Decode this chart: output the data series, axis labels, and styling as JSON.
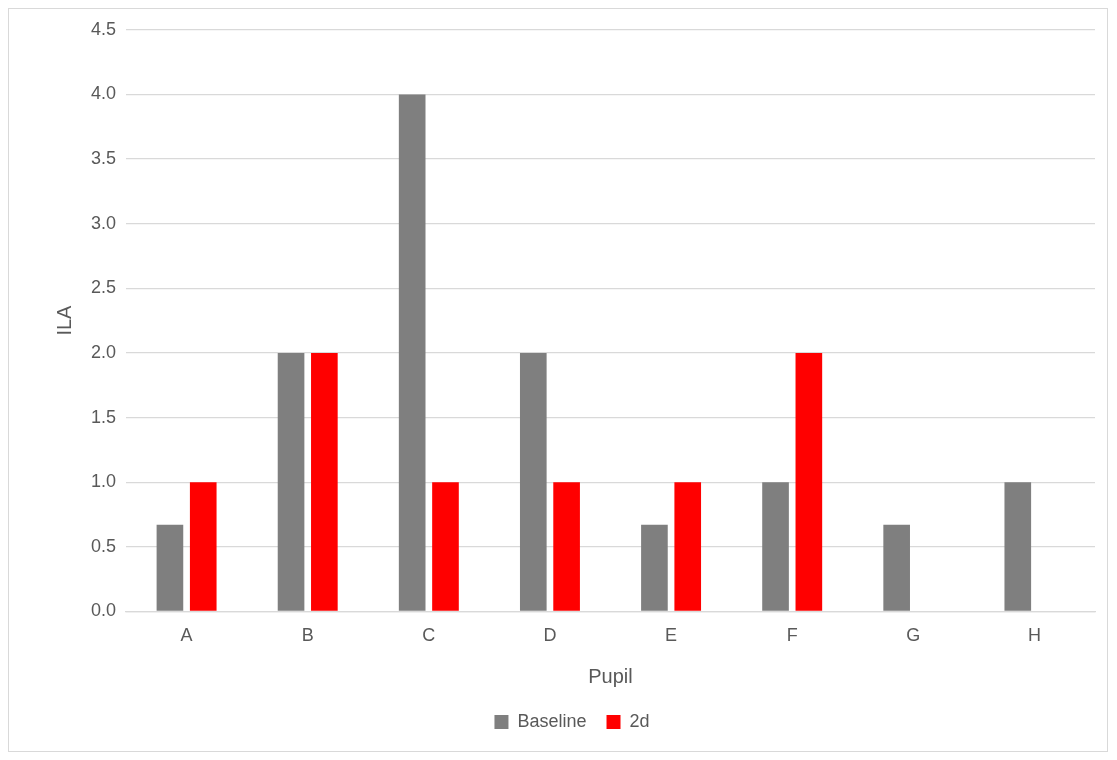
{
  "chart_data": {
    "type": "bar",
    "xlabel": "Pupil",
    "ylabel": "ILA",
    "categories": [
      "A",
      "B",
      "C",
      "D",
      "E",
      "F",
      "G",
      "H"
    ],
    "series": [
      {
        "name": "Baseline",
        "color": "#7f7f7f",
        "values": [
          0.67,
          2,
          4,
          2,
          0.67,
          1,
          0.67,
          1
        ]
      },
      {
        "name": "2d",
        "color": "#ff0000",
        "values": [
          1,
          2,
          1,
          1,
          1,
          2,
          null,
          null
        ]
      }
    ],
    "ylim": [
      0,
      4.5
    ],
    "yticks": [
      {
        "value": 0,
        "label": "0.0"
      },
      {
        "value": 0.5,
        "label": "0.5"
      },
      {
        "value": 1,
        "label": "1.0"
      },
      {
        "value": 1.5,
        "label": "1.5"
      },
      {
        "value": 2,
        "label": "2.0"
      },
      {
        "value": 2.5,
        "label": "2.5"
      },
      {
        "value": 3,
        "label": "3.0"
      },
      {
        "value": 3.5,
        "label": "3.5"
      },
      {
        "value": 4,
        "label": "4.0"
      },
      {
        "value": 4.5,
        "label": "4.5"
      }
    ],
    "grid": "y",
    "legend": "bottom"
  }
}
